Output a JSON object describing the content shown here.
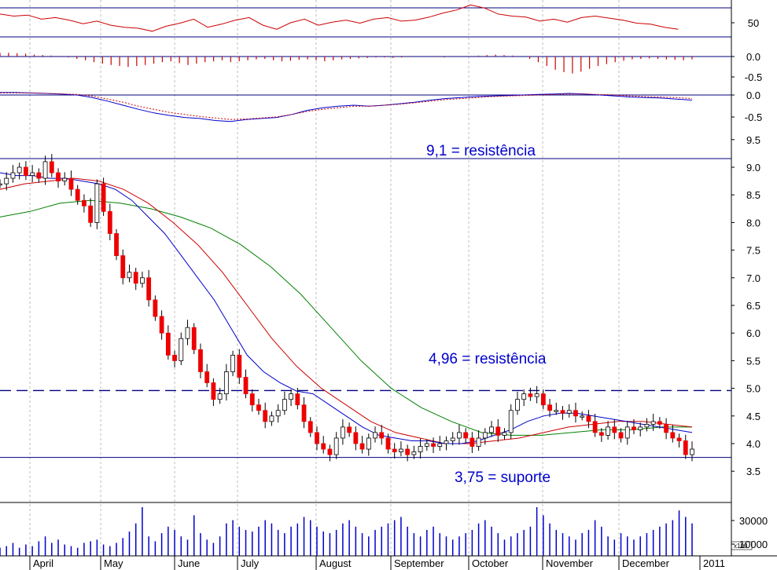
{
  "chart_data": {
    "type": "candlestick",
    "x_axis": {
      "months": [
        "April",
        "May",
        "June",
        "July",
        "August",
        "September",
        "October",
        "November",
        "December"
      ],
      "year_label": "2011"
    },
    "panels": {
      "rsi": {
        "tick_labels": [
          "50"
        ],
        "reference_levels": [
          70,
          30
        ],
        "range": [
          20,
          82
        ],
        "series": [
          {
            "index_frac": 0.0,
            "value": 62
          },
          {
            "index_frac": 0.02,
            "value": 58
          },
          {
            "index_frac": 0.04,
            "value": 60
          },
          {
            "index_frac": 0.06,
            "value": 52
          },
          {
            "index_frac": 0.08,
            "value": 55
          },
          {
            "index_frac": 0.1,
            "value": 50
          },
          {
            "index_frac": 0.12,
            "value": 43
          },
          {
            "index_frac": 0.14,
            "value": 48
          },
          {
            "index_frac": 0.16,
            "value": 40
          },
          {
            "index_frac": 0.18,
            "value": 36
          },
          {
            "index_frac": 0.2,
            "value": 34
          },
          {
            "index_frac": 0.22,
            "value": 28
          },
          {
            "index_frac": 0.24,
            "value": 38
          },
          {
            "index_frac": 0.26,
            "value": 44
          },
          {
            "index_frac": 0.28,
            "value": 52
          },
          {
            "index_frac": 0.3,
            "value": 36
          },
          {
            "index_frac": 0.32,
            "value": 42
          },
          {
            "index_frac": 0.34,
            "value": 50
          },
          {
            "index_frac": 0.36,
            "value": 55
          },
          {
            "index_frac": 0.38,
            "value": 40
          },
          {
            "index_frac": 0.4,
            "value": 32
          },
          {
            "index_frac": 0.42,
            "value": 45
          },
          {
            "index_frac": 0.44,
            "value": 52
          },
          {
            "index_frac": 0.46,
            "value": 40
          },
          {
            "index_frac": 0.48,
            "value": 46
          },
          {
            "index_frac": 0.5,
            "value": 50
          },
          {
            "index_frac": 0.52,
            "value": 44
          },
          {
            "index_frac": 0.54,
            "value": 52
          },
          {
            "index_frac": 0.56,
            "value": 55
          },
          {
            "index_frac": 0.58,
            "value": 48
          },
          {
            "index_frac": 0.6,
            "value": 50
          },
          {
            "index_frac": 0.62,
            "value": 56
          },
          {
            "index_frac": 0.64,
            "value": 64
          },
          {
            "index_frac": 0.66,
            "value": 70
          },
          {
            "index_frac": 0.68,
            "value": 80
          },
          {
            "index_frac": 0.7,
            "value": 74
          },
          {
            "index_frac": 0.72,
            "value": 62
          },
          {
            "index_frac": 0.74,
            "value": 58
          },
          {
            "index_frac": 0.76,
            "value": 56
          },
          {
            "index_frac": 0.78,
            "value": 48
          },
          {
            "index_frac": 0.8,
            "value": 52
          },
          {
            "index_frac": 0.82,
            "value": 46
          },
          {
            "index_frac": 0.84,
            "value": 55
          },
          {
            "index_frac": 0.86,
            "value": 58
          },
          {
            "index_frac": 0.88,
            "value": 54
          },
          {
            "index_frac": 0.9,
            "value": 50
          },
          {
            "index_frac": 0.92,
            "value": 44
          },
          {
            "index_frac": 0.94,
            "value": 42
          },
          {
            "index_frac": 0.96,
            "value": 36
          },
          {
            "index_frac": 0.98,
            "value": 32
          }
        ]
      },
      "histogram": {
        "tick_labels": [
          "0.0",
          "-0.5"
        ],
        "range": [
          -0.65,
          0.15
        ],
        "values": [
          0.08,
          0.08,
          0.07,
          0.06,
          0.04,
          0.03,
          0.02,
          0.01,
          -0.02,
          -0.05,
          -0.08,
          -0.12,
          -0.15,
          -0.18,
          -0.2,
          -0.22,
          -0.2,
          -0.18,
          -0.15,
          -0.12,
          -0.1,
          -0.14,
          -0.18,
          -0.15,
          -0.12,
          -0.1,
          -0.08,
          -0.12,
          -0.1,
          -0.08,
          -0.06,
          -0.05,
          -0.08,
          -0.1,
          -0.09,
          -0.07,
          -0.06,
          -0.08,
          -0.1,
          -0.08,
          -0.06,
          -0.05,
          -0.04,
          -0.03,
          -0.02,
          -0.02,
          -0.03,
          -0.02,
          -0.01,
          0.0,
          0.0,
          -0.01,
          -0.02,
          -0.01,
          0.0,
          0.01,
          0.02,
          0.03,
          0.04,
          0.03,
          0.02,
          0.0,
          -0.05,
          -0.12,
          -0.2,
          -0.28,
          -0.33,
          -0.36,
          -0.32,
          -0.26,
          -0.2,
          -0.16,
          -0.12,
          -0.09,
          -0.06,
          -0.05,
          -0.04,
          -0.05,
          -0.06,
          -0.07,
          -0.08,
          -0.06
        ]
      },
      "macd": {
        "tick_labels": [
          "0.0",
          "-0.5"
        ],
        "range": [
          -0.75,
          0.15
        ],
        "macd": [
          0.05,
          0.05,
          0.04,
          0.03,
          0.02,
          0.0,
          -0.05,
          -0.12,
          -0.2,
          -0.28,
          -0.35,
          -0.4,
          -0.44,
          -0.46,
          -0.5,
          -0.52,
          -0.48,
          -0.46,
          -0.44,
          -0.38,
          -0.3,
          -0.25,
          -0.22,
          -0.2,
          -0.22,
          -0.2,
          -0.17,
          -0.14,
          -0.1,
          -0.07,
          -0.05,
          -0.03,
          -0.02,
          -0.01,
          0.0,
          0.01,
          0.02,
          0.03,
          0.02,
          0.0,
          -0.02,
          -0.04,
          -0.05,
          -0.06,
          -0.08,
          -0.1
        ],
        "signal": [
          0.04,
          0.04,
          0.04,
          0.03,
          0.02,
          0.01,
          -0.02,
          -0.08,
          -0.14,
          -0.22,
          -0.28,
          -0.34,
          -0.38,
          -0.42,
          -0.45,
          -0.48,
          -0.47,
          -0.45,
          -0.43,
          -0.38,
          -0.32,
          -0.28,
          -0.25,
          -0.22,
          -0.22,
          -0.2,
          -0.18,
          -0.15,
          -0.12,
          -0.09,
          -0.07,
          -0.05,
          -0.03,
          -0.02,
          -0.01,
          0.0,
          0.01,
          0.02,
          0.02,
          0.01,
          0.0,
          -0.02,
          -0.03,
          -0.04,
          -0.05,
          -0.07
        ]
      },
      "price": {
        "tick_labels": [
          "9.5",
          "9.0",
          "8.5",
          "8.0",
          "7.5",
          "7.0",
          "6.5",
          "6.0",
          "5.5",
          "5.0",
          "4.5",
          "4.0",
          "3.5"
        ],
        "range": [
          3.3,
          9.9
        ],
        "annotations": [
          {
            "text": "9,1 = resistência",
            "level": 9.1,
            "style": "solid"
          },
          {
            "text": "4,96 = resistência",
            "level": 4.96,
            "style": "dashed"
          },
          {
            "text": "3,75 = suporte",
            "level": 3.75,
            "style": "solid"
          }
        ],
        "close": [
          8.7,
          8.8,
          8.9,
          9.0,
          8.85,
          8.9,
          8.8,
          9.1,
          8.9,
          8.75,
          8.8,
          8.6,
          8.4,
          8.3,
          8.0,
          8.7,
          8.2,
          7.8,
          7.4,
          7.0,
          7.1,
          6.9,
          7.0,
          6.6,
          6.3,
          6.0,
          5.6,
          5.5,
          5.9,
          6.1,
          5.7,
          5.3,
          5.1,
          4.8,
          4.9,
          5.3,
          5.6,
          5.2,
          4.9,
          4.7,
          4.6,
          4.4,
          4.5,
          4.6,
          4.8,
          4.9,
          4.7,
          4.4,
          4.2,
          4.0,
          3.9,
          3.8,
          4.1,
          4.3,
          4.2,
          4.0,
          3.9,
          4.1,
          4.2,
          4.1,
          3.9,
          3.85,
          3.9,
          3.8,
          3.85,
          3.95,
          4.0,
          3.95,
          4.0,
          4.05,
          4.1,
          4.2,
          4.1,
          3.95,
          4.1,
          4.2,
          4.3,
          4.15,
          4.2,
          4.6,
          4.8,
          4.9,
          4.85,
          4.9,
          4.7,
          4.6,
          4.6,
          4.55,
          4.6,
          4.5,
          4.5,
          4.4,
          4.2,
          4.15,
          4.3,
          4.2,
          4.1,
          4.3,
          4.25,
          4.3,
          4.35,
          4.4,
          4.35,
          4.2,
          4.1,
          4.05,
          3.8,
          3.9
        ],
        "ma_fast": [
          8.9,
          8.85,
          8.85,
          8.8,
          8.8,
          8.75,
          8.7,
          8.6,
          8.4,
          8.1,
          7.8,
          7.4,
          7.0,
          6.6,
          6.1,
          5.6,
          5.3,
          5.1,
          4.95,
          4.9,
          4.7,
          4.5,
          4.3,
          4.15,
          4.1,
          4.05,
          4.05,
          4.0,
          4.0,
          4.05,
          4.15,
          4.25,
          4.4,
          4.5,
          4.55,
          4.55,
          4.5,
          4.45,
          4.4,
          4.35,
          4.3,
          4.25,
          4.2
        ],
        "ma_mid": [
          8.6,
          8.7,
          8.75,
          8.8,
          8.75,
          8.6,
          8.35,
          8.0,
          7.6,
          7.1,
          6.5,
          5.9,
          5.4,
          5.0,
          4.7,
          4.4,
          4.2,
          4.1,
          4.0,
          4.0,
          4.05,
          4.1,
          4.2,
          4.3,
          4.35,
          4.4,
          4.4,
          4.35,
          4.3
        ],
        "ma_slow": [
          8.1,
          8.2,
          8.35,
          8.4,
          8.35,
          8.25,
          8.1,
          7.9,
          7.6,
          7.2,
          6.7,
          6.1,
          5.5,
          5.0,
          4.65,
          4.4,
          4.2,
          4.15,
          4.15,
          4.2,
          4.25,
          4.25,
          4.3,
          4.3
        ]
      },
      "volume": {
        "tick_labels": [
          "30000",
          "10000"
        ],
        "unit_label": "x100",
        "values": [
          5,
          6,
          8,
          5,
          7,
          6,
          9,
          12,
          8,
          10,
          7,
          6,
          5,
          8,
          9,
          10,
          7,
          6,
          8,
          11,
          15,
          20,
          30,
          12,
          9,
          14,
          18,
          16,
          12,
          10,
          25,
          14,
          10,
          8,
          12,
          20,
          22,
          18,
          16,
          15,
          18,
          22,
          20,
          16,
          14,
          18,
          20,
          24,
          22,
          18,
          15,
          14,
          16,
          20,
          22,
          18,
          14,
          12,
          16,
          18,
          20,
          22,
          24,
          18,
          14,
          12,
          16,
          18,
          14,
          12,
          10,
          12,
          14,
          16,
          20,
          22,
          18,
          14,
          10,
          12,
          14,
          16,
          18,
          30,
          25,
          20,
          16,
          14,
          12,
          10,
          14,
          16,
          22,
          18,
          12,
          10,
          14,
          12,
          10,
          12,
          14,
          16,
          18,
          20,
          22,
          28,
          24,
          20
        ]
      }
    }
  }
}
